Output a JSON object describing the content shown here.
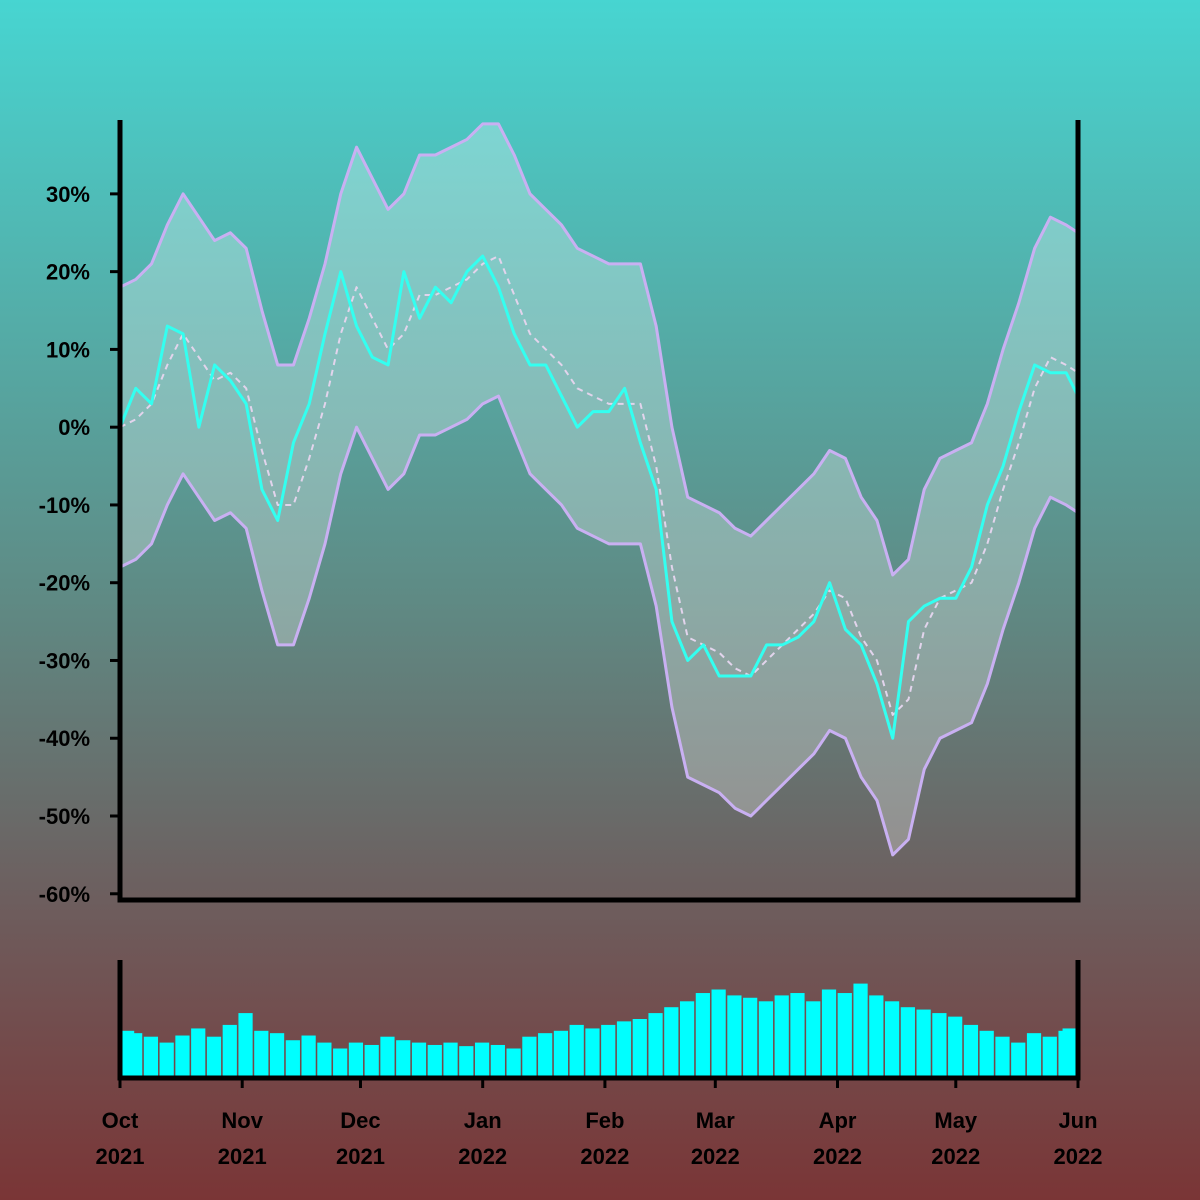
{
  "chart_data": [
    {
      "type": "line",
      "x": [
        0,
        4,
        8,
        12,
        16,
        20,
        24,
        28,
        32,
        36,
        40,
        44,
        48,
        52,
        56,
        60,
        64,
        68,
        72,
        76,
        80,
        84,
        88,
        92,
        96,
        100,
        104,
        108,
        112,
        116,
        120,
        124,
        128,
        132,
        136,
        140,
        144,
        148,
        152,
        156,
        160,
        164,
        168,
        172,
        176,
        180,
        184,
        188,
        192,
        196,
        200,
        204,
        208,
        212,
        216,
        220,
        224,
        228,
        232,
        236,
        240,
        243
      ],
      "xlim": [
        0,
        243
      ],
      "ylim": [
        -60.8,
        39.5
      ],
      "yticks": [
        {
          "value": -60,
          "label": "-60%"
        },
        {
          "value": -50,
          "label": "-50%"
        },
        {
          "value": -40,
          "label": "-40%"
        },
        {
          "value": -30,
          "label": "-30%"
        },
        {
          "value": -20,
          "label": "-20%"
        },
        {
          "value": -10,
          "label": "-10%"
        },
        {
          "value": 0,
          "label": "0%"
        },
        {
          "value": 10,
          "label": "10%"
        },
        {
          "value": 20,
          "label": "20%"
        },
        {
          "value": 30,
          "label": "30%"
        }
      ],
      "band_fill": "rgba(255,255,255,0.28)",
      "series": [
        {
          "color": "#33fff0",
          "width": 3,
          "values": [
            0,
            5,
            3,
            13,
            12,
            0,
            8,
            6,
            3,
            -8,
            -12,
            -2,
            3,
            12,
            20,
            13,
            9,
            8,
            20,
            14,
            18,
            16,
            20,
            22,
            18,
            12,
            8,
            8,
            4,
            0,
            2,
            2,
            5,
            -2,
            -8,
            -25,
            -30,
            -28,
            -32,
            -32,
            -32,
            -28,
            -28,
            -27,
            -25,
            -20,
            -26,
            -28,
            -33,
            -40,
            -25,
            -23,
            -22,
            -22,
            -18,
            -10,
            -5,
            2,
            8,
            7,
            7,
            4
          ]
        },
        {
          "color": "#e2d4ec",
          "width": 2,
          "dashed": true,
          "values": [
            0,
            1,
            3,
            8,
            12,
            9,
            6,
            7,
            5,
            -3,
            -10,
            -10,
            -4,
            3,
            12,
            18,
            14,
            10,
            12,
            17,
            17,
            18,
            19,
            21,
            22,
            17,
            12,
            10,
            8,
            5,
            4,
            3,
            3,
            3,
            -5,
            -18,
            -27,
            -28,
            -29,
            -31,
            -32,
            -30,
            -28,
            -26,
            -24,
            -21,
            -22,
            -27,
            -30,
            -37,
            -35,
            -26,
            -22,
            -21,
            -20,
            -15,
            -8,
            -2,
            5,
            9,
            8,
            7
          ]
        },
        {
          "color": "#c9b0f2",
          "width": 3,
          "values": [
            18,
            19,
            21,
            26,
            30,
            27,
            24,
            25,
            23,
            15,
            8,
            8,
            14,
            21,
            30,
            36,
            32,
            28,
            30,
            35,
            35,
            36,
            37,
            39,
            39,
            35,
            30,
            28,
            26,
            23,
            22,
            21,
            21,
            21,
            13,
            0,
            -9,
            -10,
            -11,
            -13,
            -14,
            -12,
            -10,
            -8,
            -6,
            -3,
            -4,
            -9,
            -12,
            -19,
            -17,
            -8,
            -4,
            -3,
            -2,
            3,
            10,
            16,
            23,
            27,
            26,
            25
          ]
        },
        {
          "color": "#c9b0f2",
          "width": 3,
          "values": [
            -18,
            -17,
            -15,
            -10,
            -6,
            -9,
            -12,
            -11,
            -13,
            -21,
            -28,
            -28,
            -22,
            -15,
            -6,
            0,
            -4,
            -8,
            -6,
            -1,
            -1,
            0,
            1,
            3,
            4,
            -1,
            -6,
            -8,
            -10,
            -13,
            -14,
            -15,
            -15,
            -15,
            -23,
            -36,
            -45,
            -46,
            -47,
            -49,
            -50,
            -48,
            -46,
            -44,
            -42,
            -39,
            -40,
            -45,
            -48,
            -55,
            -53,
            -44,
            -40,
            -39,
            -38,
            -33,
            -26,
            -20,
            -13,
            -9,
            -10,
            -11
          ]
        }
      ]
    },
    {
      "type": "bar",
      "x": [
        0,
        4,
        8,
        12,
        16,
        20,
        24,
        28,
        32,
        36,
        40,
        44,
        48,
        52,
        56,
        60,
        64,
        68,
        72,
        76,
        80,
        84,
        88,
        92,
        96,
        100,
        104,
        108,
        112,
        116,
        120,
        124,
        128,
        132,
        136,
        140,
        144,
        148,
        152,
        156,
        160,
        164,
        168,
        172,
        176,
        180,
        184,
        188,
        192,
        196,
        200,
        204,
        208,
        212,
        216,
        220,
        224,
        228,
        232,
        236,
        240,
        243
      ],
      "xlim": [
        0,
        243
      ],
      "ylim": [
        0,
        100
      ],
      "color": "#00ffff",
      "values": [
        40,
        38,
        35,
        30,
        36,
        42,
        35,
        45,
        55,
        40,
        38,
        32,
        36,
        30,
        25,
        30,
        28,
        35,
        32,
        30,
        28,
        30,
        27,
        30,
        28,
        25,
        35,
        38,
        40,
        45,
        42,
        45,
        48,
        50,
        55,
        60,
        65,
        72,
        75,
        70,
        68,
        65,
        70,
        72,
        65,
        75,
        72,
        80,
        70,
        65,
        60,
        58,
        55,
        52,
        45,
        40,
        35,
        30,
        38,
        35,
        40,
        42
      ],
      "xticks": [
        {
          "value": 0,
          "label": "Oct 2021"
        },
        {
          "value": 31,
          "label": "Nov 2021"
        },
        {
          "value": 61,
          "label": "Dec 2021"
        },
        {
          "value": 92,
          "label": "Jan 2022"
        },
        {
          "value": 123,
          "label": "Feb 2022"
        },
        {
          "value": 151,
          "label": "Mar 2022"
        },
        {
          "value": 182,
          "label": "Apr 2022"
        },
        {
          "value": 212,
          "label": "May 2022"
        },
        {
          "value": 243,
          "label": "Jun 2022"
        }
      ]
    }
  ]
}
